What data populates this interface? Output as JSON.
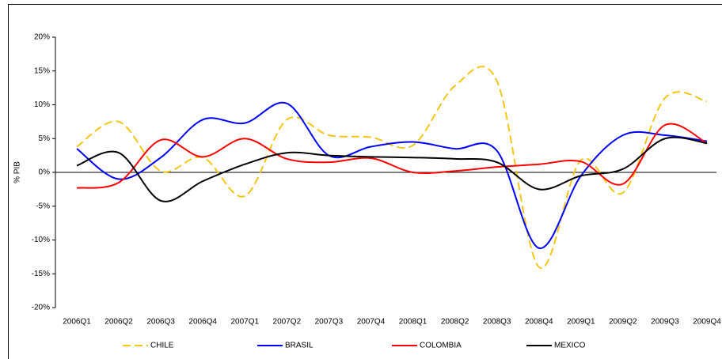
{
  "chart_data": {
    "type": "line",
    "y_label": "% PIB",
    "categories": [
      "2006Q1",
      "2006Q2",
      "2006Q3",
      "2006Q4",
      "2007Q1",
      "2007Q2",
      "2007Q3",
      "2007Q4",
      "2008Q1",
      "2008Q2",
      "2008Q3",
      "2008Q4",
      "2009Q1",
      "2009Q2",
      "2009Q3",
      "2009Q4"
    ],
    "series": [
      {
        "name": "CHILE",
        "color": "#f5c518",
        "dash": true,
        "values": [
          3.8,
          7.5,
          0.2,
          2.2,
          -3.5,
          7.8,
          5.5,
          5.2,
          4.0,
          12.8,
          13.5,
          -14.0,
          1.8,
          -3.0,
          11.0,
          10.5
        ]
      },
      {
        "name": "BRASIL",
        "color": "#0000ff",
        "dash": false,
        "values": [
          3.5,
          -1.0,
          2.2,
          7.8,
          7.3,
          10.2,
          2.5,
          3.8,
          4.5,
          3.5,
          3.2,
          -11.2,
          -0.5,
          5.5,
          5.5,
          4.6
        ]
      },
      {
        "name": "COLOMBIA",
        "color": "#ff0000",
        "dash": false,
        "values": [
          -2.3,
          -1.5,
          4.8,
          2.3,
          5.0,
          2.0,
          1.5,
          2.1,
          0.0,
          0.2,
          0.8,
          1.2,
          1.6,
          -1.7,
          7.0,
          4.3
        ]
      },
      {
        "name": "MEXICO",
        "color": "#000000",
        "dash": false,
        "values": [
          1.0,
          2.9,
          -4.2,
          -1.3,
          1.2,
          2.9,
          2.5,
          2.3,
          2.2,
          2.0,
          1.5,
          -2.5,
          -0.5,
          0.5,
          5.0,
          4.3
        ]
      }
    ],
    "ylim": [
      -20,
      20
    ],
    "yticks": [
      {
        "value": -20,
        "label": "-20%"
      },
      {
        "value": -15,
        "label": "-15%"
      },
      {
        "value": -10,
        "label": "-10%"
      },
      {
        "value": -5,
        "label": "-5%"
      },
      {
        "value": 0,
        "label": "0%"
      },
      {
        "value": 5,
        "label": "5%"
      },
      {
        "value": 10,
        "label": "10%"
      },
      {
        "value": 15,
        "label": "15%"
      },
      {
        "value": 20,
        "label": "20%"
      }
    ],
    "legend": "bottom"
  }
}
